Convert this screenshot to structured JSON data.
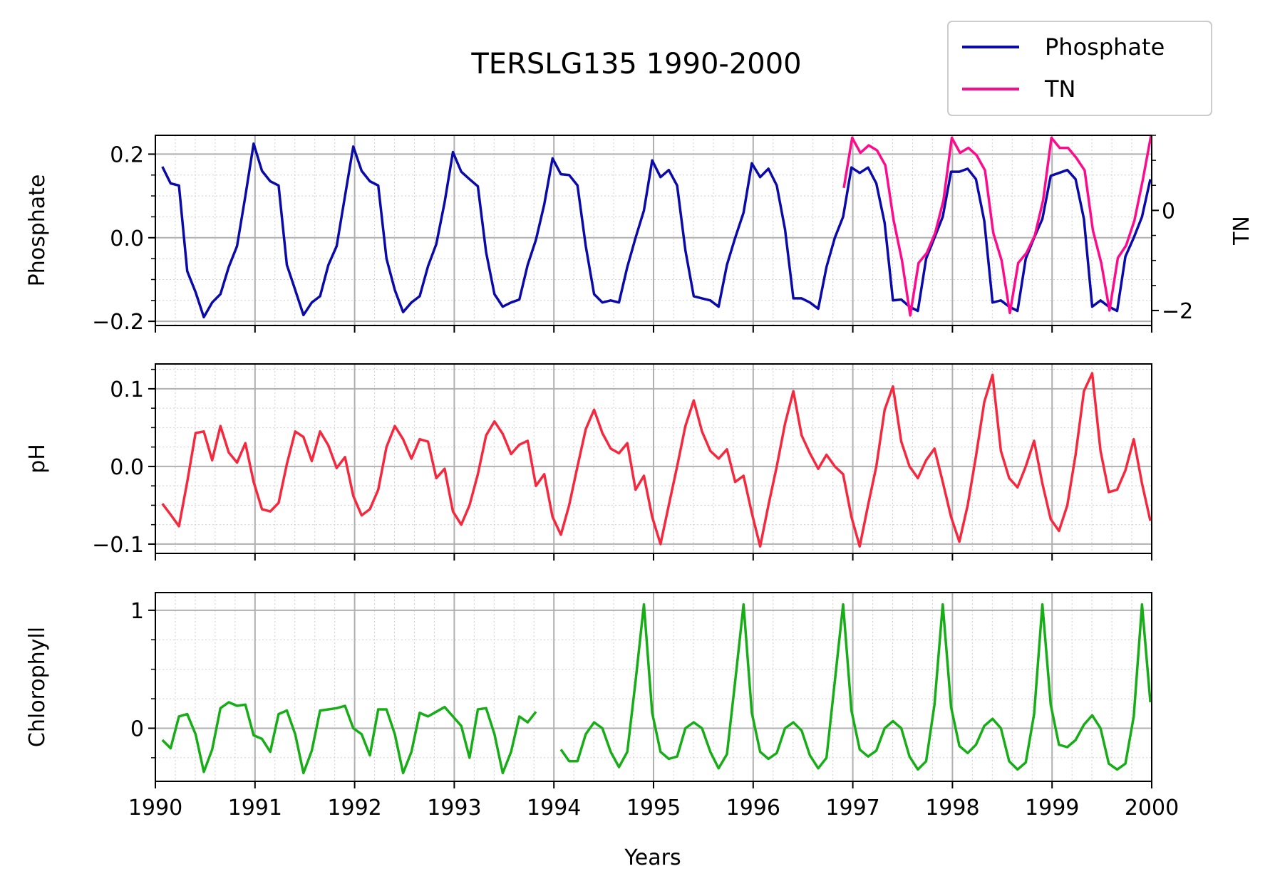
{
  "figure": {
    "title": "TERSLG135 1990-2000",
    "xlabel": "Years"
  },
  "legend": {
    "placement": "top-right",
    "entries": [
      {
        "label": "Phosphate",
        "color": "#0a0aaa"
      },
      {
        "label": "TN",
        "color": "#ff0a8c"
      }
    ]
  },
  "chart_data": [
    {
      "type": "line",
      "panel": "top",
      "ylabel": "Phosphate",
      "ylabel_right": "TN",
      "xlim": [
        1990,
        2000
      ],
      "ylim": [
        -0.21,
        0.245
      ],
      "ylim_right": [
        -2.3,
        1.5
      ],
      "yticks": [
        -0.2,
        0.0,
        0.2
      ],
      "ytick_labels": [
        "−0.2",
        "0.0",
        "0.2"
      ],
      "yticks_right": [
        -2,
        0
      ],
      "ytick_labels_right": [
        "−2",
        "0"
      ],
      "grid": true,
      "series": [
        {
          "name": "Phosphate",
          "color": "#0a0aaa",
          "x_start": 1990.07,
          "x_step": 0.08333,
          "values": [
            0.17,
            0.13,
            0.125,
            -0.08,
            -0.13,
            -0.19,
            -0.155,
            -0.135,
            -0.07,
            -0.02,
            0.1,
            0.225,
            0.16,
            0.135,
            0.125,
            -0.065,
            -0.125,
            -0.185,
            -0.155,
            -0.14,
            -0.065,
            -0.02,
            0.1,
            0.218,
            0.16,
            0.135,
            0.125,
            -0.05,
            -0.125,
            -0.178,
            -0.155,
            -0.14,
            -0.068,
            -0.015,
            0.085,
            0.205,
            0.158,
            0.14,
            0.123,
            -0.035,
            -0.135,
            -0.165,
            -0.155,
            -0.148,
            -0.065,
            -0.005,
            0.08,
            0.19,
            0.152,
            0.15,
            0.125,
            -0.02,
            -0.135,
            -0.155,
            -0.15,
            -0.155,
            -0.07,
            0.0,
            0.065,
            0.185,
            0.145,
            0.162,
            0.125,
            -0.03,
            -0.14,
            -0.145,
            -0.15,
            -0.165,
            -0.065,
            0.0,
            0.06,
            0.178,
            0.145,
            0.165,
            0.125,
            0.02,
            -0.145,
            -0.145,
            -0.155,
            -0.17,
            -0.07,
            0.0,
            0.05,
            0.168,
            0.155,
            0.168,
            0.13,
            0.035,
            -0.15,
            -0.148,
            -0.165,
            -0.175,
            -0.05,
            0.0,
            0.05,
            0.158,
            0.158,
            0.165,
            0.14,
            0.04,
            -0.155,
            -0.15,
            -0.165,
            -0.175,
            -0.05,
            0.0,
            0.045,
            0.148,
            0.155,
            0.162,
            0.14,
            0.045,
            -0.165,
            -0.15,
            -0.165,
            -0.175,
            -0.045,
            0.0,
            0.05,
            0.14
          ]
        },
        {
          "name": "TN",
          "color": "#ff0a8c",
          "axis": "right",
          "x_start": 1996.91,
          "x_step": 0.08333,
          "values": [
            0.45,
            1.45,
            1.15,
            1.3,
            1.2,
            0.9,
            -0.2,
            -1.0,
            -2.1,
            -1.05,
            -0.85,
            -0.45,
            0.2,
            1.45,
            1.15,
            1.25,
            1.1,
            0.8,
            -0.45,
            -1.0,
            -2.05,
            -1.05,
            -0.85,
            -0.5,
            0.2,
            1.45,
            1.25,
            1.25,
            1.05,
            0.8,
            -0.4,
            -1.05,
            -2.0,
            -0.95,
            -0.7,
            -0.2,
            0.6,
            1.5
          ]
        }
      ]
    },
    {
      "type": "line",
      "panel": "middle",
      "ylabel": "pH",
      "xlim": [
        1990,
        2000
      ],
      "ylim": [
        -0.112,
        0.132
      ],
      "yticks": [
        -0.1,
        0.0,
        0.1
      ],
      "ytick_labels": [
        "−0.1",
        "0.0",
        "0.1"
      ],
      "grid": true,
      "series": [
        {
          "name": "pH",
          "color": "#f5283e",
          "x_start": 1990.07,
          "x_step": 0.08333,
          "values": [
            -0.048,
            -0.062,
            -0.077,
            -0.02,
            0.043,
            0.045,
            0.008,
            0.052,
            0.018,
            0.005,
            0.03,
            -0.02,
            -0.055,
            -0.058,
            -0.047,
            0.003,
            0.045,
            0.038,
            0.007,
            0.045,
            0.027,
            -0.002,
            0.012,
            -0.038,
            -0.063,
            -0.055,
            -0.03,
            0.025,
            0.052,
            0.035,
            0.01,
            0.035,
            0.032,
            -0.015,
            -0.003,
            -0.058,
            -0.075,
            -0.05,
            -0.01,
            0.04,
            0.058,
            0.042,
            0.016,
            0.028,
            0.033,
            -0.025,
            -0.01,
            -0.065,
            -0.088,
            -0.05,
            0.0,
            0.048,
            0.073,
            0.043,
            0.023,
            0.017,
            0.03,
            -0.03,
            -0.012,
            -0.065,
            -0.1,
            -0.05,
            0.0,
            0.052,
            0.085,
            0.045,
            0.02,
            0.01,
            0.022,
            -0.02,
            -0.012,
            -0.06,
            -0.103,
            -0.05,
            0.0,
            0.055,
            0.097,
            0.04,
            0.017,
            -0.003,
            0.015,
            0.0,
            -0.01,
            -0.065,
            -0.103,
            -0.05,
            0.0,
            0.073,
            0.103,
            0.032,
            0.0,
            -0.015,
            0.008,
            0.023,
            -0.02,
            -0.065,
            -0.097,
            -0.05,
            0.013,
            0.083,
            0.118,
            0.02,
            -0.015,
            -0.027,
            0.0,
            0.033,
            -0.022,
            -0.068,
            -0.083,
            -0.05,
            0.015,
            0.097,
            0.12,
            0.02,
            -0.033,
            -0.03,
            -0.005,
            0.035,
            -0.022,
            -0.07
          ]
        }
      ]
    },
    {
      "type": "line",
      "panel": "bottom",
      "ylabel": "Chlorophyll",
      "xlim": [
        1990,
        2000
      ],
      "ylim": [
        -0.45,
        1.15
      ],
      "yticks": [
        0,
        1
      ],
      "ytick_labels": [
        "0",
        "1"
      ],
      "grid": true,
      "series": [
        {
          "name": "Chlorophyll",
          "color": "#16ad16",
          "x_start": 1990.07,
          "x_step": 0.08333,
          "values": [
            -0.1,
            -0.17,
            0.1,
            0.12,
            -0.05,
            -0.37,
            -0.18,
            0.17,
            0.22,
            0.19,
            0.2,
            -0.06,
            -0.09,
            -0.2,
            0.12,
            0.15,
            -0.05,
            -0.38,
            -0.19,
            0.15,
            0.16,
            0.17,
            0.19,
            0.0,
            -0.05,
            -0.23,
            0.16,
            0.16,
            -0.05,
            -0.38,
            -0.2,
            0.13,
            0.1,
            0.14,
            0.18,
            0.1,
            0.02,
            -0.25,
            0.16,
            0.17,
            -0.05,
            -0.38,
            -0.2,
            0.1,
            0.05,
            0.14,
            null,
            null,
            -0.18,
            -0.28,
            -0.28,
            -0.05,
            0.05,
            0.0,
            -0.2,
            -0.33,
            -0.2,
            0.4,
            1.05,
            0.13,
            -0.2,
            -0.26,
            -0.24,
            0.0,
            0.05,
            0.0,
            -0.2,
            -0.34,
            -0.22,
            0.4,
            1.05,
            0.13,
            -0.2,
            -0.26,
            -0.21,
            0.0,
            0.05,
            -0.02,
            -0.23,
            -0.34,
            -0.25,
            0.4,
            1.05,
            0.15,
            -0.18,
            -0.24,
            -0.19,
            0.0,
            0.06,
            0.0,
            -0.24,
            -0.35,
            -0.28,
            0.2,
            1.05,
            0.18,
            -0.15,
            -0.21,
            -0.14,
            0.02,
            0.08,
            0.0,
            -0.28,
            -0.35,
            -0.29,
            0.12,
            1.05,
            0.2,
            -0.14,
            -0.16,
            -0.1,
            0.03,
            0.11,
            0.0,
            -0.3,
            -0.35,
            -0.3,
            0.1,
            1.05,
            0.22,
            -0.15
          ]
        }
      ]
    }
  ],
  "xticks": [
    1990,
    1991,
    1992,
    1993,
    1994,
    1995,
    1996,
    1997,
    1998,
    1999,
    2000
  ],
  "xtick_labels": [
    "1990",
    "1991",
    "1992",
    "1993",
    "1994",
    "1995",
    "1996",
    "1997",
    "1998",
    "1999",
    "2000"
  ]
}
